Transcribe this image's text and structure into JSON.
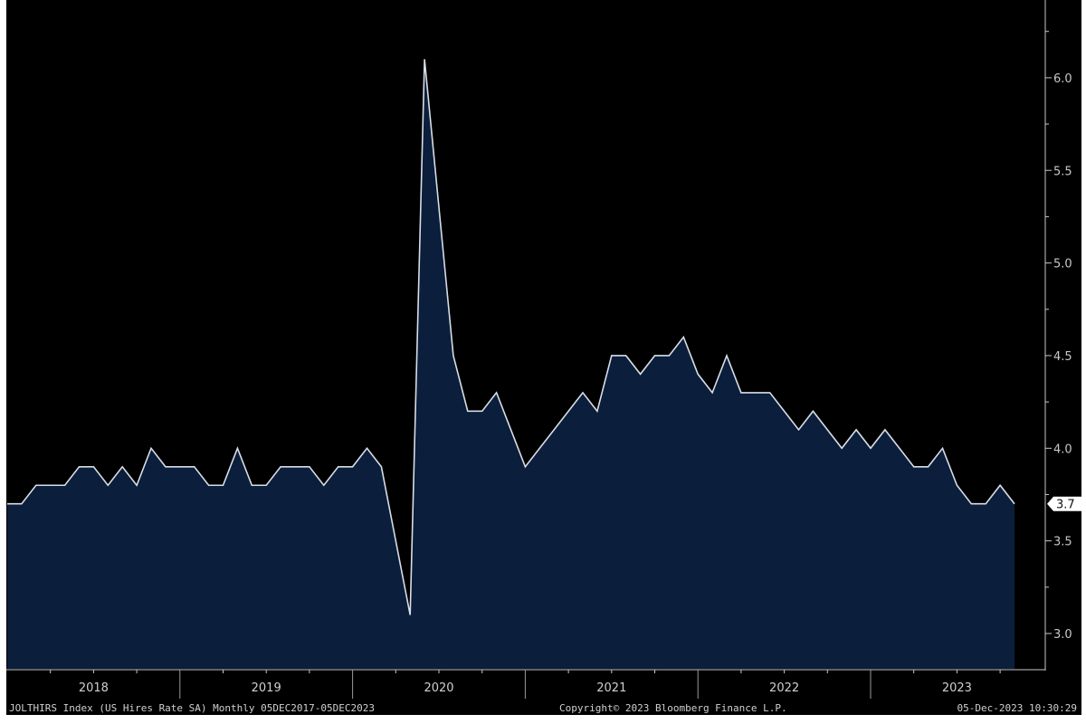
{
  "chart_data": {
    "type": "area",
    "title": "",
    "xlabel": "",
    "ylabel": "",
    "ylim": [
      2.8,
      6.3
    ],
    "yticks": [
      "3.0",
      "3.5",
      "4.0",
      "4.5",
      "5.0",
      "5.5",
      "6.0"
    ],
    "year_labels": [
      "2018",
      "2019",
      "2020",
      "2021",
      "2022",
      "2023"
    ],
    "grid": false,
    "last_value_label": "3.7",
    "x_start": "2017-12",
    "x_end": "2023-10",
    "frequency": "monthly",
    "values": [
      3.7,
      3.7,
      3.8,
      3.8,
      3.8,
      3.9,
      3.9,
      3.8,
      3.9,
      3.8,
      4.0,
      3.9,
      3.9,
      3.9,
      3.8,
      3.8,
      4.0,
      3.8,
      3.8,
      3.9,
      3.9,
      3.9,
      3.8,
      3.9,
      3.9,
      4.0,
      3.9,
      3.5,
      3.1,
      6.1,
      5.3,
      4.5,
      4.2,
      4.2,
      4.3,
      4.1,
      3.9,
      4.0,
      4.1,
      4.2,
      4.3,
      4.2,
      4.5,
      4.5,
      4.4,
      4.5,
      4.5,
      4.6,
      4.4,
      4.3,
      4.5,
      4.3,
      4.3,
      4.3,
      4.2,
      4.1,
      4.2,
      4.1,
      4.0,
      4.1,
      4.0,
      4.1,
      4.0,
      3.9,
      3.9,
      4.0,
      3.8,
      3.7,
      3.7,
      3.8,
      3.7
    ],
    "colors": {
      "background": "#000000",
      "fill": "#0b1e3b",
      "line": "#d8dde6",
      "axis": "#c8c8c8"
    }
  },
  "footer": {
    "left": "JOLTHIRS Index (US Hires Rate SA)  Monthly 05DEC2017-05DEC2023",
    "center": "Copyright© 2023 Bloomberg Finance L.P.",
    "right": "05-Dec-2023 10:30:29"
  }
}
